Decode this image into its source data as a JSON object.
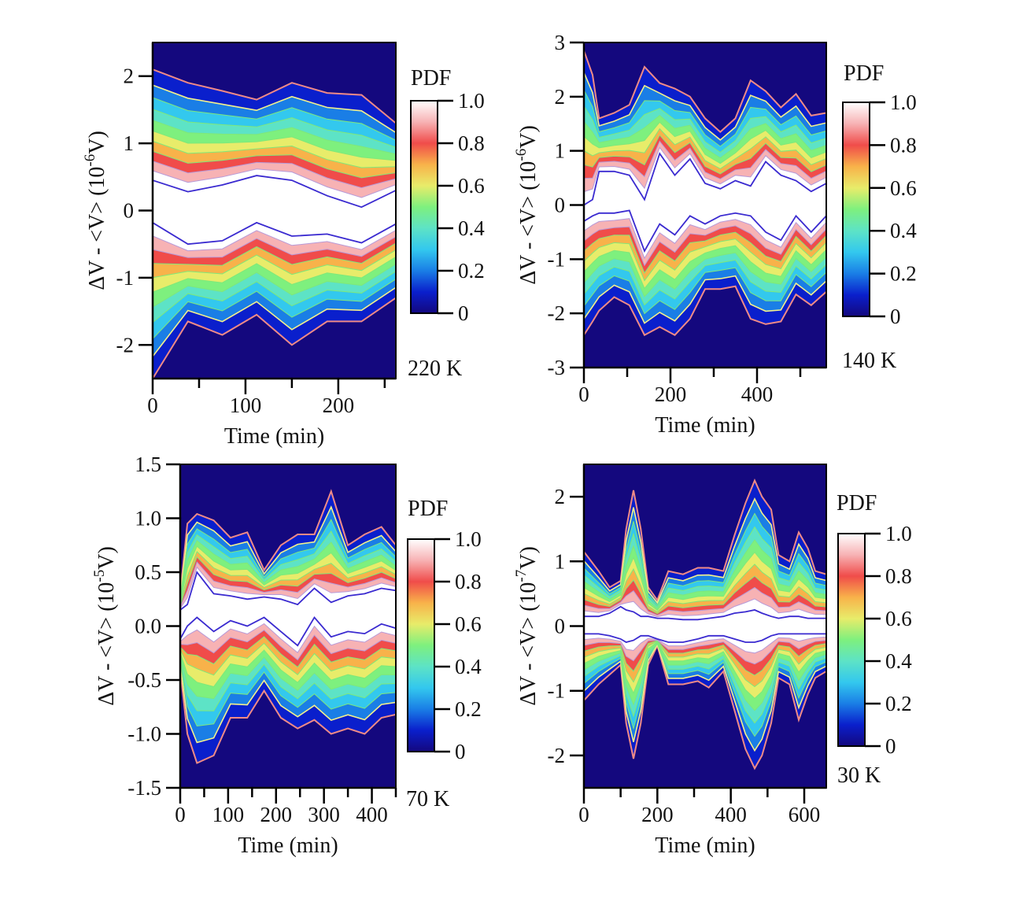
{
  "figure": {
    "colormap": [
      "#14087e",
      "#0a1fcc",
      "#1a7ee6",
      "#33c8ee",
      "#5de3c6",
      "#7ef07e",
      "#e8ec6a",
      "#f8b24a",
      "#f04c4a",
      "#f7b2b4",
      "#ffffff"
    ],
    "colormap_name": "rainbow-to-white",
    "contour_line_colors": {
      "outer": "#f08a86",
      "second": "#f4f08c",
      "inner": "#3a2ad0"
    }
  },
  "chart_data": [
    {
      "id": "panel-220K",
      "type": "heatmap",
      "subtype": "filled-contour",
      "title": "",
      "temperature_label": "220 K",
      "xlabel": "Time (min)",
      "ylabel": "ΔV - <V> (10",
      "ylabel_exponent": "-6",
      "ylabel_suffix": "V)",
      "xlim": [
        0,
        262
      ],
      "ylim": [
        -2.5,
        2.5
      ],
      "xticks": [
        0,
        100,
        200
      ],
      "xticks_minor": [
        50,
        150,
        250
      ],
      "xtick_labels": [
        "0",
        "100",
        "200"
      ],
      "yticks": [
        -2,
        -1,
        0,
        1,
        2
      ],
      "ytick_labels": [
        "-2",
        "-1",
        "0",
        "1",
        "2"
      ],
      "colorbar": {
        "label": "PDF",
        "range": [
          0,
          1.0
        ],
        "ticks": [
          0,
          0.2,
          0.4,
          0.6,
          0.8,
          1.0
        ],
        "tick_labels": [
          "0",
          "0.2",
          "0.4",
          "0.6",
          "0.8",
          "1.0"
        ]
      },
      "upper_envelope": {
        "x": [
          0,
          38,
          75,
          112,
          150,
          188,
          225,
          262
        ],
        "outer": [
          2.1,
          1.9,
          1.78,
          1.65,
          1.9,
          1.75,
          1.72,
          1.3
        ],
        "inner": [
          0.45,
          0.28,
          0.38,
          0.52,
          0.45,
          0.22,
          0.05,
          0.3
        ]
      },
      "lower_envelope": {
        "x": [
          0,
          38,
          75,
          112,
          150,
          188,
          225,
          262
        ],
        "inner": [
          -0.18,
          -0.5,
          -0.45,
          -0.18,
          -0.38,
          -0.35,
          -0.48,
          -0.2
        ],
        "outer": [
          -2.5,
          -1.65,
          -1.85,
          -1.55,
          -2.0,
          -1.65,
          -1.65,
          -1.3
        ]
      }
    },
    {
      "id": "panel-140K",
      "type": "heatmap",
      "subtype": "filled-contour",
      "temperature_label": "140 K",
      "xlabel": "Time (min)",
      "ylabel": "ΔV - <V> (10",
      "ylabel_exponent": "-6",
      "ylabel_suffix": "V)",
      "xlim": [
        0,
        560
      ],
      "ylim": [
        -3,
        3
      ],
      "xticks": [
        0,
        200,
        400
      ],
      "xticks_minor": [
        100,
        300,
        500
      ],
      "xtick_labels": [
        "0",
        "200",
        "400"
      ],
      "yticks": [
        -3,
        -2,
        -1,
        0,
        1,
        2,
        3
      ],
      "ytick_labels": [
        "-3",
        "-2",
        "-1",
        "0",
        "1",
        "2",
        "3"
      ],
      "colorbar": {
        "label": "PDF",
        "range": [
          0,
          1.0
        ],
        "ticks": [
          0,
          0.2,
          0.4,
          0.6,
          0.8,
          1.0
        ],
        "tick_labels": [
          "0",
          "0.2",
          "0.4",
          "0.6",
          "0.8",
          "1.0"
        ]
      },
      "upper_envelope": {
        "x": [
          0,
          20,
          35,
          70,
          105,
          140,
          175,
          210,
          245,
          280,
          315,
          350,
          385,
          420,
          455,
          490,
          525,
          560
        ],
        "outer": [
          2.85,
          2.4,
          1.6,
          1.7,
          1.85,
          2.55,
          2.25,
          2.15,
          2.0,
          1.6,
          1.35,
          1.6,
          2.3,
          2.1,
          1.8,
          2.05,
          1.65,
          1.7
        ],
        "inner": [
          0.0,
          0.1,
          0.62,
          0.62,
          0.55,
          0.1,
          0.95,
          0.55,
          0.85,
          0.4,
          0.3,
          0.45,
          0.35,
          0.8,
          0.55,
          0.45,
          0.25,
          0.4
        ]
      },
      "lower_envelope": {
        "x": [
          0,
          20,
          35,
          70,
          105,
          140,
          175,
          210,
          245,
          280,
          315,
          350,
          385,
          420,
          455,
          490,
          525,
          560
        ],
        "inner": [
          -0.3,
          -0.2,
          -0.15,
          -0.15,
          -0.1,
          -0.85,
          -0.35,
          -0.55,
          -0.2,
          -0.35,
          -0.2,
          -0.15,
          -0.2,
          -0.5,
          -0.65,
          -0.2,
          -0.5,
          -0.2
        ],
        "outer": [
          -2.4,
          -2.15,
          -1.95,
          -1.7,
          -1.85,
          -2.4,
          -2.25,
          -2.4,
          -2.1,
          -1.55,
          -1.55,
          -1.5,
          -2.1,
          -2.2,
          -2.15,
          -1.65,
          -1.85,
          -1.6
        ]
      }
    },
    {
      "id": "panel-70K",
      "type": "heatmap",
      "subtype": "filled-contour",
      "temperature_label": "70 K",
      "xlabel": "Time (min)",
      "ylabel": "ΔV - <V> (10",
      "ylabel_exponent": "-5",
      "ylabel_suffix": "V)",
      "xlim": [
        0,
        450
      ],
      "ylim": [
        -1.5,
        1.5
      ],
      "xticks": [
        0,
        100,
        200,
        300,
        400
      ],
      "xticks_minor": [
        50,
        150,
        250,
        350,
        450
      ],
      "xtick_labels": [
        "0",
        "100",
        "200",
        "300",
        "400"
      ],
      "yticks": [
        -1.5,
        -1.0,
        -0.5,
        0.0,
        0.5,
        1.0,
        1.5
      ],
      "ytick_labels": [
        "-1.5",
        "-1.0",
        "-0.5",
        "0.0",
        "0.5",
        "1.0",
        "1.5"
      ],
      "colorbar": {
        "label": "PDF",
        "range": [
          0,
          1.0
        ],
        "ticks": [
          0,
          0.2,
          0.4,
          0.6,
          0.8,
          1.0
        ],
        "tick_labels": [
          "0",
          "0.2",
          "0.4",
          "0.6",
          "0.8",
          "1.0"
        ]
      },
      "upper_envelope": {
        "x": [
          0,
          15,
          35,
          70,
          105,
          140,
          175,
          210,
          245,
          280,
          315,
          350,
          385,
          420,
          450
        ],
        "outer": [
          0.3,
          0.95,
          1.04,
          0.98,
          0.82,
          0.87,
          0.52,
          0.75,
          0.85,
          0.85,
          1.25,
          0.75,
          0.85,
          0.92,
          0.75
        ],
        "inner": [
          0.15,
          0.2,
          0.5,
          0.3,
          0.28,
          0.25,
          0.27,
          0.25,
          0.2,
          0.35,
          0.22,
          0.28,
          0.3,
          0.35,
          0.33
        ]
      },
      "lower_envelope": {
        "x": [
          0,
          15,
          35,
          70,
          105,
          140,
          175,
          210,
          245,
          280,
          315,
          350,
          385,
          420,
          450
        ],
        "inner": [
          -0.12,
          0.0,
          0.08,
          -0.05,
          0.05,
          0.0,
          0.08,
          -0.05,
          -0.18,
          0.08,
          -0.1,
          -0.05,
          -0.07,
          0.02,
          -0.02
        ],
        "outer": [
          -0.4,
          -1.0,
          -1.27,
          -1.2,
          -0.85,
          -0.85,
          -0.6,
          -0.85,
          -0.95,
          -0.87,
          -1.0,
          -0.95,
          -1.0,
          -0.85,
          -0.82
        ]
      }
    },
    {
      "id": "panel-30K",
      "type": "heatmap",
      "subtype": "filled-contour",
      "temperature_label": "30 K",
      "xlabel": "Time (min)",
      "ylabel": "ΔV - <V> (10",
      "ylabel_exponent": "-7",
      "ylabel_suffix": "V)",
      "xlim": [
        0,
        660
      ],
      "ylim": [
        -2.5,
        2.5
      ],
      "xticks": [
        0,
        200,
        400,
        600
      ],
      "xticks_minor": [
        100,
        300,
        500
      ],
      "xtick_labels": [
        "0",
        "200",
        "400",
        "600"
      ],
      "yticks": [
        -2,
        -1,
        0,
        1,
        2
      ],
      "ytick_labels": [
        "-2",
        "-1",
        "0",
        "1",
        "2"
      ],
      "colorbar": {
        "label": "PDF",
        "range": [
          0,
          1.0
        ],
        "ticks": [
          0,
          0.2,
          0.4,
          0.6,
          0.8,
          1.0
        ],
        "tick_labels": [
          "0",
          "0.2",
          "0.4",
          "0.6",
          "0.8",
          "1.0"
        ]
      },
      "upper_envelope": {
        "x": [
          0,
          40,
          70,
          100,
          115,
          135,
          155,
          175,
          200,
          230,
          270,
          310,
          340,
          380,
          410,
          440,
          465,
          485,
          510,
          530,
          560,
          585,
          610,
          630,
          660
        ],
        "outer": [
          1.15,
          0.85,
          0.6,
          0.7,
          1.5,
          2.1,
          1.5,
          0.6,
          0.4,
          0.85,
          0.8,
          0.9,
          0.9,
          0.85,
          1.4,
          1.9,
          2.25,
          2.0,
          1.8,
          1.1,
          1.0,
          1.45,
          1.2,
          0.85,
          0.8
        ],
        "inner": [
          0.15,
          0.15,
          0.2,
          0.3,
          0.25,
          0.22,
          0.15,
          0.15,
          0.12,
          0.12,
          0.1,
          0.1,
          0.12,
          0.15,
          0.2,
          0.22,
          0.25,
          0.2,
          0.15,
          0.12,
          0.15,
          0.15,
          0.12,
          0.12,
          0.12
        ]
      },
      "lower_envelope": {
        "x": [
          0,
          40,
          70,
          100,
          115,
          135,
          155,
          175,
          200,
          230,
          270,
          310,
          340,
          380,
          410,
          440,
          465,
          485,
          510,
          530,
          560,
          585,
          610,
          630,
          660
        ],
        "inner": [
          -0.12,
          -0.12,
          -0.15,
          -0.2,
          -0.25,
          -0.22,
          -0.15,
          -0.15,
          -0.2,
          -0.25,
          -0.25,
          -0.2,
          -0.15,
          -0.15,
          -0.2,
          -0.25,
          -0.25,
          -0.22,
          -0.15,
          -0.12,
          -0.12,
          -0.12,
          -0.12,
          -0.12,
          -0.12
        ],
        "outer": [
          -1.15,
          -0.9,
          -0.75,
          -0.6,
          -1.5,
          -2.05,
          -1.5,
          -0.6,
          -0.3,
          -0.9,
          -0.9,
          -0.85,
          -0.95,
          -0.7,
          -1.3,
          -1.9,
          -2.2,
          -2.0,
          -1.5,
          -0.8,
          -0.9,
          -1.45,
          -1.05,
          -0.8,
          -0.7
        ]
      }
    }
  ]
}
